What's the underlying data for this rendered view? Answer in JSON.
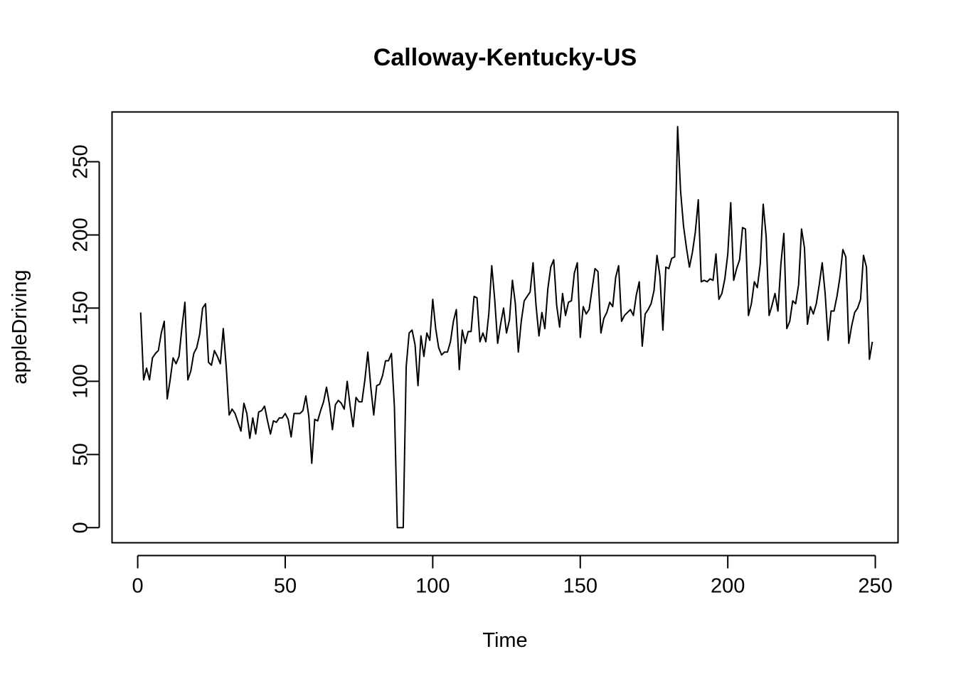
{
  "chart_data": {
    "type": "line",
    "title": "Calloway-Kentucky-US",
    "xlabel": "Time",
    "ylabel": "appleDriving",
    "xlim": [
      -8.7,
      257.7
    ],
    "ylim": [
      -10.3,
      284.0
    ],
    "xticks": [
      0,
      50,
      100,
      150,
      200,
      250
    ],
    "yticks": [
      0,
      50,
      100,
      150,
      200,
      250
    ],
    "xtick_labels": [
      "0",
      "50",
      "100",
      "150",
      "200",
      "250"
    ],
    "ytick_labels": [
      "0",
      "50",
      "100",
      "150",
      "200",
      "250"
    ],
    "grid": false,
    "line_color": "#000000",
    "series": [
      {
        "x_start": 1,
        "x_step": 1,
        "values": [
          147,
          101,
          109,
          101,
          116,
          119,
          121,
          133,
          141,
          88,
          101,
          116,
          112,
          117,
          137,
          154,
          101,
          107,
          119,
          123,
          132,
          150,
          153,
          113,
          111,
          121,
          117,
          112,
          136,
          110,
          77,
          81,
          78,
          72,
          66,
          85,
          78,
          61,
          75,
          64,
          79,
          80,
          83,
          73,
          64,
          73,
          72,
          75,
          75,
          78,
          74,
          62,
          78,
          78,
          78,
          80,
          90,
          76,
          44,
          74,
          73,
          80,
          86,
          96,
          84,
          67,
          84,
          87,
          85,
          81,
          100,
          83,
          69,
          89,
          86,
          86,
          101,
          120,
          96,
          77,
          97,
          98,
          104,
          114,
          114,
          119,
          83,
          0,
          0,
          0,
          110,
          133,
          135,
          125,
          97,
          131,
          117,
          133,
          128,
          156,
          136,
          123,
          118,
          120,
          120,
          127,
          141,
          149,
          108,
          135,
          126,
          134,
          134,
          158,
          157,
          127,
          133,
          127,
          146,
          179,
          156,
          126,
          139,
          150,
          133,
          142,
          169,
          153,
          120,
          141,
          155,
          158,
          161,
          181,
          152,
          131,
          147,
          136,
          163,
          178,
          183,
          152,
          137,
          160,
          145,
          154,
          155,
          174,
          181,
          130,
          151,
          146,
          149,
          163,
          177,
          175,
          133,
          143,
          147,
          154,
          151,
          171,
          179,
          141,
          145,
          147,
          149,
          145,
          159,
          168,
          124,
          146,
          149,
          153,
          162,
          186,
          172,
          135,
          178,
          177,
          184,
          185,
          274,
          230,
          206,
          191,
          178,
          188,
          202,
          224,
          168,
          169,
          168,
          170,
          169,
          187,
          156,
          160,
          170,
          187,
          222,
          169,
          177,
          183,
          205,
          204,
          145,
          153,
          168,
          164,
          180,
          221,
          199,
          145,
          152,
          160,
          148,
          180,
          201,
          136,
          141,
          155,
          153,
          166,
          204,
          191,
          139,
          151,
          146,
          153,
          166,
          181,
          160,
          128,
          148,
          148,
          158,
          171,
          190,
          185,
          126,
          138,
          147,
          150,
          156,
          186,
          178,
          115,
          127
        ]
      }
    ]
  }
}
